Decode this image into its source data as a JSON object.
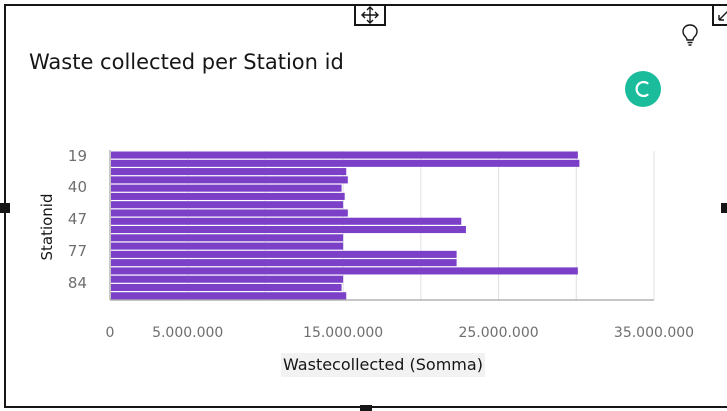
{
  "widget": {
    "title": "Waste collected per Station id",
    "icons": {
      "move": "move-arrows-icon",
      "resize": "resize-arrow-icon",
      "insight": "lightbulb-icon",
      "loading": "loading-spinner-icon"
    },
    "accent_color": "#1abc9c"
  },
  "chart_data": {
    "type": "bar",
    "orientation": "horizontal",
    "xlabel": "Wastecollected (Somma)",
    "ylabel": "Stationid",
    "xlim": [
      0,
      35000000
    ],
    "x_ticks": [
      {
        "value": 0,
        "label": "0"
      },
      {
        "value": 5000000,
        "label": "5.000.000"
      },
      {
        "value": 15000000,
        "label": "15.000.000"
      },
      {
        "value": 25000000,
        "label": "25.000.000"
      },
      {
        "value": 35000000,
        "label": "35.000.000"
      }
    ],
    "visible_category_labels": [
      "19",
      "40",
      "47",
      "77",
      "84"
    ],
    "grid": true,
    "bar_color": "#7b3fc8",
    "values": [
      30100000,
      30200000,
      15200000,
      15300000,
      14900000,
      15100000,
      15000000,
      15300000,
      22600000,
      22900000,
      15000000,
      15000000,
      22300000,
      22300000,
      30100000,
      15000000,
      14900000,
      15200000
    ]
  }
}
